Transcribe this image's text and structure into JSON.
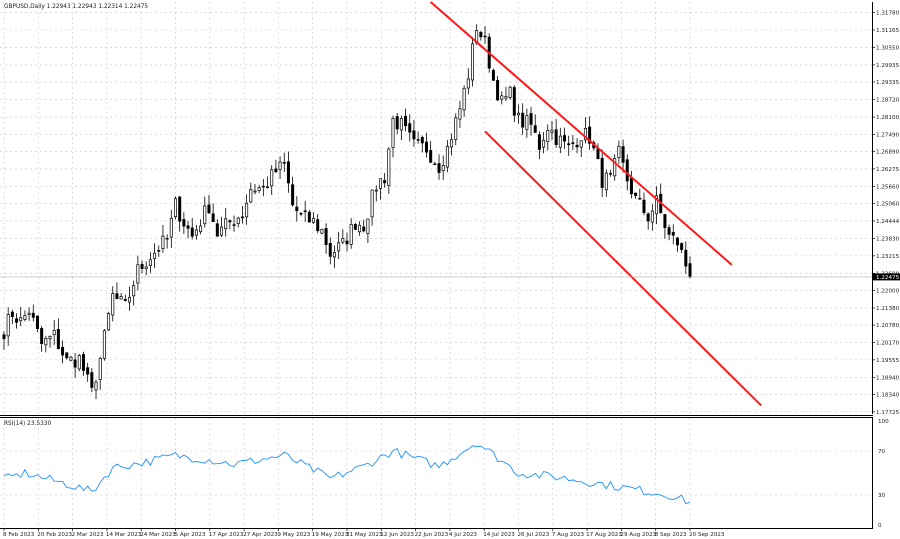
{
  "chart_data": [
    {
      "type": "candlestick",
      "title": "GBPUSD,Daily  1.22943 1.22943 1.22314 1.22475",
      "symbol": "GBPUSD",
      "timeframe": "Daily",
      "ohlc_header": {
        "open": 1.22943,
        "high": 1.22943,
        "low": 1.22314,
        "close": 1.22475
      },
      "last_price_label": "1.22475",
      "ylim": [
        1.1765,
        1.3215
      ],
      "y_ticks": [
        "1.31780",
        "1.31165",
        "1.30550",
        "1.29935",
        "1.29335",
        "1.28720",
        "1.28100",
        "1.27490",
        "1.26890",
        "1.26275",
        "1.25660",
        "1.25060",
        "1.24444",
        "1.23830",
        "1.23215",
        "1.22600",
        "1.22000",
        "1.21380",
        "1.20780",
        "1.20170",
        "1.19555",
        "1.18940",
        "1.18340",
        "1.17725"
      ],
      "x_ticks": [
        "8 Feb 2023",
        "20 Feb 2023",
        "2 Mar 2023",
        "14 Mar 2023",
        "24 Mar 2023",
        "5 Apr 2023",
        "17 Apr 2023",
        "27 Apr 2023",
        "9 May 2023",
        "19 May 2023",
        "31 May 2023",
        "12 Jun 2023",
        "22 Jun 2023",
        "4 Jul 2023",
        "14 Jul 2023",
        "26 Jul 2023",
        "7 Aug 2023",
        "17 Aug 2023",
        "29 Aug 2023",
        "8 Sep 2023",
        "20 Sep 2023"
      ],
      "close_path": [
        {
          "date": "2023-02-06",
          "close": 1.206
        },
        {
          "date": "2023-02-08",
          "close": 1.212
        },
        {
          "date": "2023-02-10",
          "close": 1.209
        },
        {
          "date": "2023-02-14",
          "close": 1.213
        },
        {
          "date": "2023-02-17",
          "close": 1.201
        },
        {
          "date": "2023-02-22",
          "close": 1.204
        },
        {
          "date": "2023-02-27",
          "close": 1.195
        },
        {
          "date": "2023-03-02",
          "close": 1.196
        },
        {
          "date": "2023-03-07",
          "close": 1.184
        },
        {
          "date": "2023-03-09",
          "close": 1.196
        },
        {
          "date": "2023-03-14",
          "close": 1.218
        },
        {
          "date": "2023-03-17",
          "close": 1.214
        },
        {
          "date": "2023-03-22",
          "close": 1.227
        },
        {
          "date": "2023-03-27",
          "close": 1.232
        },
        {
          "date": "2023-03-31",
          "close": 1.238
        },
        {
          "date": "2023-04-04",
          "close": 1.25
        },
        {
          "date": "2023-04-06",
          "close": 1.244
        },
        {
          "date": "2023-04-10",
          "close": 1.239
        },
        {
          "date": "2023-04-14",
          "close": 1.25
        },
        {
          "date": "2023-04-18",
          "close": 1.24
        },
        {
          "date": "2023-04-21",
          "close": 1.244
        },
        {
          "date": "2023-04-26",
          "close": 1.247
        },
        {
          "date": "2023-04-28",
          "close": 1.256
        },
        {
          "date": "2023-05-03",
          "close": 1.256
        },
        {
          "date": "2023-05-08",
          "close": 1.262
        },
        {
          "date": "2023-05-10",
          "close": 1.264
        },
        {
          "date": "2023-05-12",
          "close": 1.25
        },
        {
          "date": "2023-05-16",
          "close": 1.246
        },
        {
          "date": "2023-05-19",
          "close": 1.244
        },
        {
          "date": "2023-05-23",
          "close": 1.241
        },
        {
          "date": "2023-05-25",
          "close": 1.233
        },
        {
          "date": "2023-05-30",
          "close": 1.236
        },
        {
          "date": "2023-06-02",
          "close": 1.244
        },
        {
          "date": "2023-06-06",
          "close": 1.243
        },
        {
          "date": "2023-06-09",
          "close": 1.257
        },
        {
          "date": "2023-06-13",
          "close": 1.26
        },
        {
          "date": "2023-06-15",
          "close": 1.28
        },
        {
          "date": "2023-06-19",
          "close": 1.278
        },
        {
          "date": "2023-06-22",
          "close": 1.271
        },
        {
          "date": "2023-06-27",
          "close": 1.27
        },
        {
          "date": "2023-06-30",
          "close": 1.264
        },
        {
          "date": "2023-07-04",
          "close": 1.27
        },
        {
          "date": "2023-07-07",
          "close": 1.284
        },
        {
          "date": "2023-07-11",
          "close": 1.296
        },
        {
          "date": "2023-07-13",
          "close": 1.313
        },
        {
          "date": "2023-07-17",
          "close": 1.307
        },
        {
          "date": "2023-07-19",
          "close": 1.294
        },
        {
          "date": "2023-07-21",
          "close": 1.286
        },
        {
          "date": "2023-07-25",
          "close": 1.289
        },
        {
          "date": "2023-07-27",
          "close": 1.28
        },
        {
          "date": "2023-08-01",
          "close": 1.278
        },
        {
          "date": "2023-08-03",
          "close": 1.271
        },
        {
          "date": "2023-08-07",
          "close": 1.278
        },
        {
          "date": "2023-08-09",
          "close": 1.274
        },
        {
          "date": "2023-08-14",
          "close": 1.27
        },
        {
          "date": "2023-08-17",
          "close": 1.275
        },
        {
          "date": "2023-08-21",
          "close": 1.274
        },
        {
          "date": "2023-08-24",
          "close": 1.259
        },
        {
          "date": "2023-08-28",
          "close": 1.259
        },
        {
          "date": "2023-08-30",
          "close": 1.268
        },
        {
          "date": "2023-09-01",
          "close": 1.259
        },
        {
          "date": "2023-09-05",
          "close": 1.252
        },
        {
          "date": "2023-09-08",
          "close": 1.246
        },
        {
          "date": "2023-09-12",
          "close": 1.251
        },
        {
          "date": "2023-09-15",
          "close": 1.239
        },
        {
          "date": "2023-09-19",
          "close": 1.237
        },
        {
          "date": "2023-09-21",
          "close": 1.229
        },
        {
          "date": "2023-09-22",
          "close": 1.2248
        }
      ],
      "channel_lines": [
        {
          "name": "upper",
          "points": [
            {
              "date": "2023-06-28",
              "price": 1.3215
            },
            {
              "date": "2023-10-06",
              "price": 1.229
            }
          ]
        },
        {
          "name": "lower",
          "points": [
            {
              "date": "2023-07-17",
              "price": 1.276
            },
            {
              "date": "2023-10-17",
              "price": 1.1795
            }
          ]
        }
      ],
      "colors": {
        "bull": "#ffffff",
        "bear": "#000000",
        "channel": "#ff1a1a",
        "grid": "#c8c8c8"
      }
    },
    {
      "type": "line",
      "indicator_label": "RSI(14) 23.5330",
      "ylim": [
        0,
        100
      ],
      "y_ticks": [
        "100",
        "70",
        "30",
        "0"
      ],
      "levels": [
        70,
        30
      ],
      "values": [
        {
          "date": "2023-02-06",
          "rsi": 44
        },
        {
          "date": "2023-02-13",
          "rsi": 50
        },
        {
          "date": "2023-02-20",
          "rsi": 45
        },
        {
          "date": "2023-02-27",
          "rsi": 40
        },
        {
          "date": "2023-03-07",
          "rsi": 33
        },
        {
          "date": "2023-03-14",
          "rsi": 55
        },
        {
          "date": "2023-03-24",
          "rsi": 60
        },
        {
          "date": "2023-04-04",
          "rsi": 66
        },
        {
          "date": "2023-04-14",
          "rsi": 62
        },
        {
          "date": "2023-04-24",
          "rsi": 58
        },
        {
          "date": "2023-05-10",
          "rsi": 66
        },
        {
          "date": "2023-05-25",
          "rsi": 45
        },
        {
          "date": "2023-06-06",
          "rsi": 56
        },
        {
          "date": "2023-06-15",
          "rsi": 70
        },
        {
          "date": "2023-06-30",
          "rsi": 56
        },
        {
          "date": "2023-07-13",
          "rsi": 78
        },
        {
          "date": "2023-07-27",
          "rsi": 50
        },
        {
          "date": "2023-08-10",
          "rsi": 46
        },
        {
          "date": "2023-08-24",
          "rsi": 40
        },
        {
          "date": "2023-09-05",
          "rsi": 35
        },
        {
          "date": "2023-09-15",
          "rsi": 30
        },
        {
          "date": "2023-09-22",
          "rsi": 23.5
        }
      ],
      "line_color": "#1e90ff"
    }
  ]
}
